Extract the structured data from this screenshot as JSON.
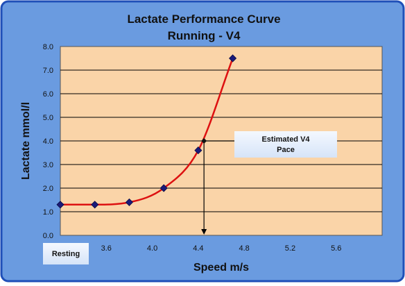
{
  "chart_data": {
    "type": "scatter",
    "title": [
      "Lactate Performance Curve",
      "Running - V4"
    ],
    "xlabel": "Speed m/s",
    "ylabel": "Lactate mmol/l",
    "xlim": [
      3.2,
      6.0
    ],
    "ylim": [
      0.0,
      8.0
    ],
    "x_ticks": [
      3.6,
      4.0,
      4.4,
      4.8,
      5.2,
      5.6
    ],
    "x_tick_labels": [
      "3.6",
      "4.0",
      "4.4",
      "4.8",
      "5.2",
      "5.6"
    ],
    "y_ticks": [
      0,
      1,
      2,
      3,
      4,
      5,
      6,
      7,
      8
    ],
    "y_tick_labels": [
      "0.0",
      "1.0",
      "2.0",
      "3.0",
      "4.0",
      "5.0",
      "6.0",
      "7.0",
      "8.0"
    ],
    "grid": "horizontal",
    "series": [
      {
        "x": [
          3.2,
          3.5,
          3.8,
          4.1,
          4.4,
          4.7
        ],
        "y": [
          1.3,
          1.3,
          1.4,
          2.0,
          3.6,
          7.5
        ],
        "color": "#1a1a7a",
        "trend_color": "#dd1111"
      }
    ],
    "annotations": [
      {
        "text": [
          "Estimated V4",
          "Pace"
        ],
        "x": 4.45,
        "y": 4.0
      },
      {
        "text": "Resting"
      }
    ],
    "colors": {
      "frame": "#6a9be0",
      "frame_border": "#1f4fb8",
      "plot_bg": "#fad4a8",
      "grid": "#000000"
    }
  }
}
